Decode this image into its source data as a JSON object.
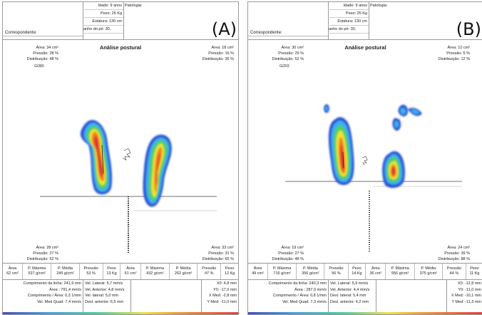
{
  "panels": [
    {
      "label": "(A)",
      "header": {
        "age": "Idade: 9 anos",
        "weight": "Peso: 25 Kg",
        "height": "Estatura: 130 cm",
        "shoe": "anho do pé: 30,",
        "patologia": "Patologia:",
        "correspondente": "Correspondente:"
      },
      "title": "Análise postural",
      "top_left": {
        "area": "Área:  34 cm²",
        "pressao": "Pressão: 28 %",
        "distribuicao": "Distribuição: 48 %",
        "code": "G/380"
      },
      "top_right": {
        "area": "Área:  18 cm²",
        "pressao": "Pressão: 16 %",
        "distribuicao": "Distribuição: 35 %"
      },
      "bottom_left": {
        "area": "Área:  28 cm²",
        "pressao": "Pressão: 27 %",
        "distribuicao": "Distribuição: 52 %"
      },
      "bottom_right": {
        "area": "Área:  33 cm²",
        "pressao": "Pressão: 31 %",
        "distribuicao": "Distribuição: 65 %"
      },
      "stats_headers": [
        "Área",
        "P. Máxima",
        "P. Média",
        "Pressão",
        "Peso",
        "Área",
        "P. Máxima",
        "P. Média",
        "Pressão",
        "Peso"
      ],
      "stats_values": [
        "62 cm²",
        "537 g/cm²",
        "245 g/cm²",
        "53 %",
        "13 Kg",
        "51 cm²",
        "432 g/cm²",
        "262 g/cm²",
        "47 %",
        "12 Kg"
      ],
      "metrics_col1": [
        "Comprimento da linha: 241,9 mm",
        "Área : 791,4 mm/s",
        "Comprimento / Área: 0,3 1/mm",
        "Vel. Med Quad: 7,4 mm/s"
      ],
      "metrics_col2": [
        "Vel. Lateral: 5,7 mm/s",
        "Vel. Anterior: 4,8 mm/s",
        "Vel. lateral: 5,0 mm",
        "Desl. anterior: 6,5 mm"
      ],
      "metrics_col3": [
        "X0: 4,8 mm",
        "Y0: -17,0 mm",
        "X Med: -2,8 mm",
        "Y Med: -11,0 mm"
      ]
    },
    {
      "label": "(B)",
      "header": {
        "age": "Idade: 9 anos",
        "weight": "Peso: 25 Kg",
        "height": "Estatura: 130 cm",
        "shoe": "anho do pé: 30,",
        "patologia": "Patologia:",
        "correspondente": "Correspondente:"
      },
      "title": "Análise postural",
      "top_left": {
        "area": "Área:  30 cm²",
        "pressao": "Pressão: 29 %",
        "distribuicao": "Distribuição: 52 %",
        "code": "G/203"
      },
      "top_right": {
        "area": "Área:  12 cm²",
        "pressao": "Pressão: 5 %",
        "distribuicao": "Distribuição: 12 %"
      },
      "bottom_left": {
        "area": "Área:  19 cm²",
        "pressao": "Pressão: 27 %",
        "distribuicao": "Distribuição: 48 %"
      },
      "bottom_right": {
        "area": "Área:  24 cm²",
        "pressao": "Pressão: 39 %",
        "distribuicao": "Distribuição: 88 %"
      },
      "stats_headers": [
        "Área",
        "P. Máxima",
        "P. Média",
        "Pressão",
        "Peso",
        "Área",
        "P. Máxima",
        "P. Média",
        "Pressão",
        "Peso"
      ],
      "stats_values": [
        "49 cm²",
        "716 g/cm²",
        "356 g/cm²",
        "56 %",
        "14 Kg",
        "36 cm²",
        "956 g/cm²",
        "375 g/cm²",
        "44 %",
        "11 Kg"
      ],
      "metrics_col1": [
        "Comprimento da linha: 240,3 mm",
        "Área : 287,0 mm/s",
        "Comprimento / Área: 0,8 1/mm",
        "Vel. Med Quad: 7,3 mm/s"
      ],
      "metrics_col2": [
        "Vel. Lateral: 5,9 mm/s",
        "Vel. Anterior: 4,4 mm/s",
        "Desl. lateral: 5,4 mm",
        "Desl. anterior: 4,2 mm"
      ],
      "metrics_col3": [
        "X0: -12,8 mm",
        "Y0: -11,0 mm",
        "X Med: -10,1 mm",
        "Y Med: -11,3 mm"
      ]
    }
  ]
}
